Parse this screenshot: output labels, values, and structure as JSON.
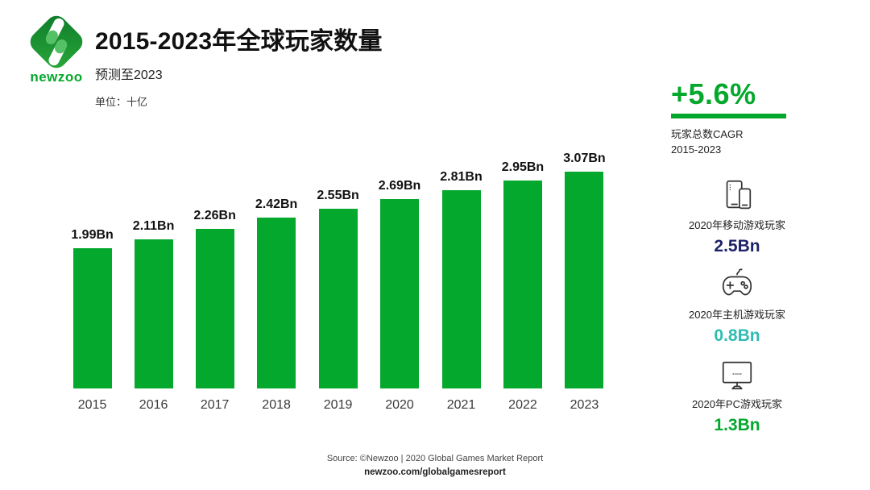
{
  "brand": {
    "logo_text": "newzoo"
  },
  "header": {
    "title": "2015-2023年全球玩家数量",
    "subtitle": "预测至2023",
    "unit_label": "单位：十亿"
  },
  "chart_data": {
    "type": "bar",
    "categories": [
      "2015",
      "2016",
      "2017",
      "2018",
      "2019",
      "2020",
      "2021",
      "2022",
      "2023"
    ],
    "values": [
      1.99,
      2.11,
      2.26,
      2.42,
      2.55,
      2.69,
      2.81,
      2.95,
      3.07
    ],
    "value_labels": [
      "1.99Bn",
      "2.11Bn",
      "2.26Bn",
      "2.42Bn",
      "2.55Bn",
      "2.69Bn",
      "2.81Bn",
      "2.95Bn",
      "3.07Bn"
    ],
    "title": "2015-2023年全球玩家数量",
    "xlabel": "",
    "ylabel": "单位：十亿",
    "ylim": [
      0,
      3.2
    ],
    "bar_color": "#04a82c",
    "grid": false,
    "legend": "none"
  },
  "cagr": {
    "value": "+5.6%",
    "label_line1": "玩家总数CAGR",
    "label_line2": "2015-2023"
  },
  "stats": [
    {
      "icon": "mobile-devices-icon",
      "label": "2020年移动游戏玩家",
      "value": "2.5Bn",
      "color": "#1f2368"
    },
    {
      "icon": "gamepad-icon",
      "label": "2020年主机游戏玩家",
      "value": "0.8Bn",
      "color": "#2fbcb2"
    },
    {
      "icon": "monitor-icon",
      "label": "2020年PC游戏玩家",
      "value": "1.3Bn",
      "color": "#04a82c"
    }
  ],
  "footer": {
    "source_line": "Source: ©Newzoo | 2020 Global Games Market Report",
    "link_line": "newzoo.com/globalgamesreport"
  },
  "colors": {
    "accent_green": "#04a82c",
    "navy": "#1f2368",
    "teal": "#2fbcb2"
  }
}
